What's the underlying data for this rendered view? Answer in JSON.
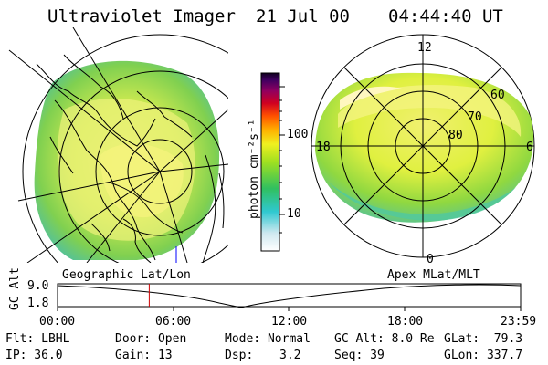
{
  "header": {
    "title": "Ultraviolet Imager",
    "date": "21 Jul 00",
    "time": "04:44:40 UT"
  },
  "colorbar": {
    "label": "photon cm⁻²s⁻¹",
    "ticks": [
      "100",
      "10"
    ]
  },
  "geo_map": {
    "label": "Geographic Lat/Lon"
  },
  "apex_map": {
    "label": "Apex MLat/MLT",
    "lat_labels": [
      "60",
      "70",
      "80"
    ],
    "mlt_labels": [
      "12",
      "18",
      "6",
      "0"
    ]
  },
  "altitude_plot": {
    "axis_label": "GC Alt",
    "y_ticks": [
      "9.0",
      "1.8"
    ],
    "x_ticks": [
      "00:00",
      "06:00",
      "12:00",
      "18:00",
      "23:59"
    ],
    "current_time_fraction": 0.198
  },
  "info": {
    "row1": [
      "Flt: LBHL",
      "Door: Open",
      "Mode: Normal",
      "GC Alt: 8.0 Re",
      "GLat:  79.3"
    ],
    "row2": [
      "IP: 36.0",
      "Gain: 13",
      "Dsp:",
      "3.2",
      "Seq: 39",
      "GLon: 337.7"
    ]
  },
  "colors": {
    "accent_marker": "#cc0000"
  }
}
